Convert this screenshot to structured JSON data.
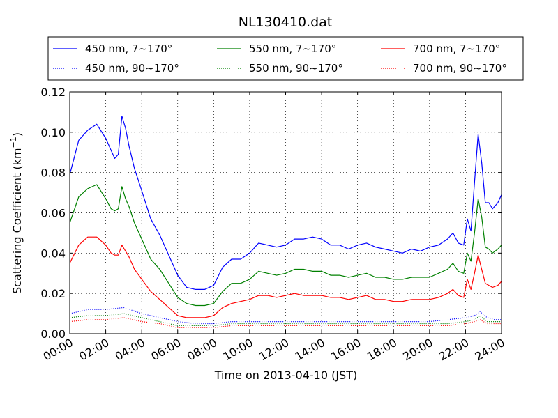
{
  "chart_data": {
    "type": "line",
    "title": "NL130410.dat",
    "xlabel": "Time on 2013-04-10 (JST)",
    "ylabel_main": "Scattering Coefficient (km",
    "ylabel_exp": "−1",
    "ylabel_end": ")",
    "xlim": [
      0,
      24
    ],
    "ylim": [
      0,
      0.12
    ],
    "xticks": [
      {
        "v": 0,
        "label": "00:00"
      },
      {
        "v": 2,
        "label": "02:00"
      },
      {
        "v": 4,
        "label": "04:00"
      },
      {
        "v": 6,
        "label": "06:00"
      },
      {
        "v": 8,
        "label": "08:00"
      },
      {
        "v": 10,
        "label": "10:00"
      },
      {
        "v": 12,
        "label": "12:00"
      },
      {
        "v": 14,
        "label": "14:00"
      },
      {
        "v": 16,
        "label": "16:00"
      },
      {
        "v": 18,
        "label": "18:00"
      },
      {
        "v": 20,
        "label": "20:00"
      },
      {
        "v": 22,
        "label": "22:00"
      },
      {
        "v": 24,
        "label": "24:00"
      }
    ],
    "yticks": [
      {
        "v": 0,
        "label": "0.00"
      },
      {
        "v": 0.02,
        "label": "0.02"
      },
      {
        "v": 0.04,
        "label": "0.04"
      },
      {
        "v": 0.06,
        "label": "0.06"
      },
      {
        "v": 0.08,
        "label": "0.08"
      },
      {
        "v": 0.1,
        "label": "0.10"
      },
      {
        "v": 0.12,
        "label": "0.12"
      }
    ],
    "grid": true,
    "legend_position": "top",
    "series": [
      {
        "name": "450 nm, 7∼170°",
        "color": "#0000ff",
        "style": "solid",
        "x": [
          0,
          0.5,
          1,
          1.5,
          2,
          2.3,
          2.5,
          2.7,
          2.9,
          3.1,
          3.3,
          3.6,
          4,
          4.5,
          5,
          5.5,
          6,
          6.5,
          7,
          7.5,
          8,
          8.5,
          9,
          9.5,
          10,
          10.5,
          11,
          11.5,
          12,
          12.5,
          13,
          13.5,
          14,
          14.5,
          15,
          15.5,
          16,
          16.5,
          17,
          17.5,
          18,
          18.5,
          19,
          19.5,
          20,
          20.5,
          21,
          21.3,
          21.6,
          21.9,
          22.1,
          22.3,
          22.5,
          22.7,
          22.9,
          23.1,
          23.3,
          23.5,
          23.8,
          24
        ],
        "y": [
          0.079,
          0.096,
          0.101,
          0.104,
          0.097,
          0.091,
          0.087,
          0.089,
          0.108,
          0.102,
          0.093,
          0.082,
          0.071,
          0.057,
          0.049,
          0.039,
          0.029,
          0.023,
          0.022,
          0.022,
          0.024,
          0.033,
          0.037,
          0.037,
          0.04,
          0.045,
          0.044,
          0.043,
          0.044,
          0.047,
          0.047,
          0.048,
          0.047,
          0.044,
          0.044,
          0.042,
          0.044,
          0.045,
          0.043,
          0.042,
          0.041,
          0.04,
          0.042,
          0.041,
          0.043,
          0.044,
          0.047,
          0.05,
          0.045,
          0.044,
          0.057,
          0.051,
          0.075,
          0.099,
          0.085,
          0.065,
          0.065,
          0.062,
          0.065,
          0.069
        ]
      },
      {
        "name": "550 nm, 7∼170°",
        "color": "#008000",
        "style": "solid",
        "x": [
          0,
          0.5,
          1,
          1.5,
          2,
          2.3,
          2.5,
          2.7,
          2.9,
          3.1,
          3.3,
          3.6,
          4,
          4.5,
          5,
          5.5,
          6,
          6.5,
          7,
          7.5,
          8,
          8.5,
          9,
          9.5,
          10,
          10.5,
          11,
          11.5,
          12,
          12.5,
          13,
          13.5,
          14,
          14.5,
          15,
          15.5,
          16,
          16.5,
          17,
          17.5,
          18,
          18.5,
          19,
          19.5,
          20,
          20.5,
          21,
          21.3,
          21.6,
          21.9,
          22.1,
          22.3,
          22.5,
          22.7,
          22.9,
          23.1,
          23.3,
          23.5,
          23.8,
          24
        ],
        "y": [
          0.055,
          0.068,
          0.072,
          0.074,
          0.067,
          0.062,
          0.061,
          0.062,
          0.073,
          0.067,
          0.063,
          0.055,
          0.047,
          0.037,
          0.032,
          0.025,
          0.018,
          0.015,
          0.014,
          0.014,
          0.015,
          0.021,
          0.025,
          0.025,
          0.027,
          0.031,
          0.03,
          0.029,
          0.03,
          0.032,
          0.032,
          0.031,
          0.031,
          0.029,
          0.029,
          0.028,
          0.029,
          0.03,
          0.028,
          0.028,
          0.027,
          0.027,
          0.028,
          0.028,
          0.028,
          0.03,
          0.032,
          0.035,
          0.031,
          0.03,
          0.04,
          0.036,
          0.05,
          0.067,
          0.058,
          0.043,
          0.042,
          0.04,
          0.042,
          0.044
        ]
      },
      {
        "name": "700 nm, 7∼170°",
        "color": "#ff0000",
        "style": "solid",
        "x": [
          0,
          0.5,
          1,
          1.5,
          2,
          2.3,
          2.5,
          2.7,
          2.9,
          3.1,
          3.3,
          3.6,
          4,
          4.5,
          5,
          5.5,
          6,
          6.5,
          7,
          7.5,
          8,
          8.5,
          9,
          9.5,
          10,
          10.5,
          11,
          11.5,
          12,
          12.5,
          13,
          13.5,
          14,
          14.5,
          15,
          15.5,
          16,
          16.5,
          17,
          17.5,
          18,
          18.5,
          19,
          19.5,
          20,
          20.5,
          21,
          21.3,
          21.6,
          21.9,
          22.1,
          22.3,
          22.5,
          22.7,
          22.9,
          23.1,
          23.3,
          23.5,
          23.8,
          24
        ],
        "y": [
          0.035,
          0.044,
          0.048,
          0.048,
          0.044,
          0.04,
          0.039,
          0.039,
          0.044,
          0.041,
          0.038,
          0.032,
          0.027,
          0.021,
          0.017,
          0.013,
          0.009,
          0.008,
          0.008,
          0.008,
          0.009,
          0.013,
          0.015,
          0.016,
          0.017,
          0.019,
          0.019,
          0.018,
          0.019,
          0.02,
          0.019,
          0.019,
          0.019,
          0.018,
          0.018,
          0.017,
          0.018,
          0.019,
          0.017,
          0.017,
          0.016,
          0.016,
          0.017,
          0.017,
          0.017,
          0.018,
          0.02,
          0.022,
          0.019,
          0.018,
          0.027,
          0.022,
          0.03,
          0.039,
          0.032,
          0.025,
          0.024,
          0.023,
          0.024,
          0.026
        ]
      },
      {
        "name": "450 nm, 90∼170°",
        "color": "#0000ff",
        "style": "dotted",
        "x": [
          0,
          1,
          2,
          3,
          4,
          5,
          6,
          7,
          8,
          9,
          10,
          11,
          12,
          13,
          14,
          15,
          16,
          17,
          18,
          19,
          20,
          21,
          22,
          22.5,
          22.8,
          23.2,
          23.6,
          24
        ],
        "y": [
          0.01,
          0.012,
          0.012,
          0.013,
          0.01,
          0.008,
          0.006,
          0.005,
          0.005,
          0.006,
          0.006,
          0.006,
          0.006,
          0.006,
          0.006,
          0.006,
          0.006,
          0.006,
          0.006,
          0.006,
          0.006,
          0.007,
          0.008,
          0.009,
          0.011,
          0.008,
          0.007,
          0.007
        ]
      },
      {
        "name": "550 nm, 90∼170°",
        "color": "#008000",
        "style": "dotted",
        "x": [
          0,
          1,
          2,
          3,
          4,
          5,
          6,
          7,
          8,
          9,
          10,
          11,
          12,
          13,
          14,
          15,
          16,
          17,
          18,
          19,
          20,
          21,
          22,
          22.5,
          22.8,
          23.2,
          23.6,
          24
        ],
        "y": [
          0.008,
          0.009,
          0.009,
          0.01,
          0.008,
          0.006,
          0.004,
          0.004,
          0.004,
          0.005,
          0.005,
          0.005,
          0.005,
          0.005,
          0.005,
          0.005,
          0.005,
          0.005,
          0.005,
          0.005,
          0.005,
          0.005,
          0.006,
          0.007,
          0.009,
          0.006,
          0.006,
          0.006
        ]
      },
      {
        "name": "700 nm, 90∼170°",
        "color": "#ff0000",
        "style": "dotted",
        "x": [
          0,
          1,
          2,
          3,
          4,
          5,
          6,
          7,
          8,
          9,
          10,
          11,
          12,
          13,
          14,
          15,
          16,
          17,
          18,
          19,
          20,
          21,
          22,
          22.5,
          22.8,
          23.2,
          23.6,
          24
        ],
        "y": [
          0.006,
          0.007,
          0.007,
          0.008,
          0.006,
          0.005,
          0.003,
          0.003,
          0.003,
          0.004,
          0.004,
          0.004,
          0.004,
          0.004,
          0.004,
          0.004,
          0.004,
          0.004,
          0.004,
          0.004,
          0.004,
          0.004,
          0.005,
          0.006,
          0.007,
          0.005,
          0.005,
          0.005
        ]
      }
    ]
  }
}
